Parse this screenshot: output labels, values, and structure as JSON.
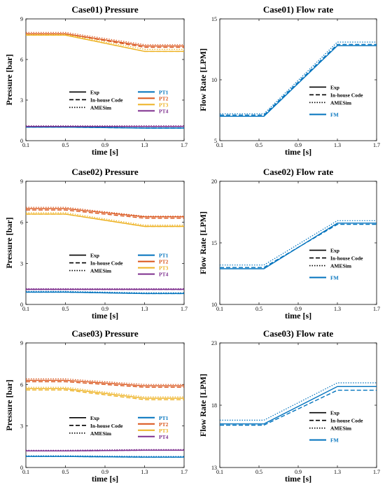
{
  "colors": {
    "PT1": "#0072BD",
    "PT2": "#D95319",
    "PT3": "#EDB120",
    "PT4": "#7E2F8E",
    "FM": "#0072BD"
  },
  "legend_styles": [
    "Exp",
    "In-house Code",
    "AMESim"
  ],
  "chart_data": [
    {
      "type": "line",
      "title": "Case01) Pressure",
      "xlabel": "time [s]",
      "ylabel": "Pressure [bar]",
      "xlim": [
        0.1,
        1.7
      ],
      "ylim": [
        0,
        9
      ],
      "xticks": [
        "0.1",
        "0.5",
        "0.9",
        "1.3",
        "1.7"
      ],
      "yticks": [
        "0",
        "3",
        "6",
        "9"
      ],
      "legend_styles": [
        "Exp",
        "In-house Code",
        "AMESim"
      ],
      "legend_series": [
        "PT1",
        "PT2",
        "PT3",
        "PT4"
      ],
      "x": [
        0.1,
        0.5,
        1.3,
        1.7
      ],
      "series": [
        {
          "name": "PT1",
          "exp": [
            1.0,
            1.0,
            0.93,
            0.93
          ],
          "code": [
            1.0,
            1.0,
            0.93,
            0.93
          ],
          "amesim": [
            1.02,
            1.02,
            0.95,
            0.95
          ]
        },
        {
          "name": "PT2",
          "exp": [
            7.9,
            7.9,
            7.0,
            7.0
          ],
          "code": [
            7.9,
            7.9,
            6.9,
            6.9
          ],
          "amesim": [
            8.0,
            8.0,
            7.1,
            7.1
          ]
        },
        {
          "name": "PT3",
          "exp": [
            7.8,
            7.8,
            6.6,
            6.6
          ],
          "code": [
            7.8,
            7.8,
            6.6,
            6.6
          ],
          "amesim": [
            7.85,
            7.85,
            6.75,
            6.75
          ]
        },
        {
          "name": "PT4",
          "exp": [
            1.05,
            1.05,
            1.05,
            1.05
          ],
          "code": [
            1.05,
            1.05,
            1.05,
            1.05
          ],
          "amesim": [
            1.1,
            1.1,
            1.1,
            1.1
          ]
        }
      ]
    },
    {
      "type": "line",
      "title": "Case01) Flow rate",
      "xlabel": "time [s]",
      "ylabel": "Flow Rate [LPM]",
      "xlim": [
        0.1,
        1.7
      ],
      "ylim": [
        5,
        15
      ],
      "xticks": [
        "0.1",
        "0.5",
        "0.9",
        "1.3",
        "1.7"
      ],
      "yticks": [
        "5",
        "10",
        "15"
      ],
      "legend_styles": [
        "Exp",
        "In-house Code",
        "AMESim"
      ],
      "legend_series": [
        "FM"
      ],
      "x": [
        0.1,
        0.55,
        1.3,
        1.7
      ],
      "series": [
        {
          "name": "FM",
          "exp": [
            7.0,
            7.0,
            12.8,
            12.8
          ],
          "code": [
            7.1,
            7.1,
            12.9,
            12.9
          ],
          "amesim": [
            7.2,
            7.2,
            13.1,
            13.1
          ]
        }
      ]
    },
    {
      "type": "line",
      "title": "Case02) Pressure",
      "xlabel": "time [s]",
      "ylabel": "Pressure [bar]",
      "xlim": [
        0.1,
        1.7
      ],
      "ylim": [
        0,
        9
      ],
      "xticks": [
        "0.1",
        "0.5",
        "0.9",
        "1.3",
        "1.7"
      ],
      "yticks": [
        "0",
        "3",
        "6",
        "9"
      ],
      "legend_styles": [
        "Exp",
        "In-house Code",
        "AMESim"
      ],
      "legend_series": [
        "PT1",
        "PT2",
        "PT3",
        "PT4"
      ],
      "x": [
        0.1,
        0.5,
        1.3,
        1.7
      ],
      "series": [
        {
          "name": "PT1",
          "exp": [
            0.9,
            0.9,
            0.8,
            0.8
          ],
          "code": [
            0.9,
            0.9,
            0.8,
            0.8
          ],
          "amesim": [
            0.95,
            0.95,
            0.85,
            0.85
          ]
        },
        {
          "name": "PT2",
          "exp": [
            7.0,
            7.0,
            6.4,
            6.4
          ],
          "code": [
            6.9,
            6.9,
            6.3,
            6.3
          ],
          "amesim": [
            7.1,
            7.1,
            6.45,
            6.45
          ]
        },
        {
          "name": "PT3",
          "exp": [
            6.6,
            6.6,
            5.7,
            5.7
          ],
          "code": [
            6.6,
            6.6,
            5.7,
            5.7
          ],
          "amesim": [
            6.7,
            6.7,
            5.8,
            5.8
          ]
        },
        {
          "name": "PT4",
          "exp": [
            1.1,
            1.1,
            1.1,
            1.1
          ],
          "code": [
            1.1,
            1.1,
            1.1,
            1.1
          ],
          "amesim": [
            1.15,
            1.15,
            1.15,
            1.15
          ]
        }
      ]
    },
    {
      "type": "line",
      "title": "Case02) Flow rate",
      "xlabel": "time [s]",
      "ylabel": "Flow Rate [LPM]",
      "xlim": [
        0.1,
        1.7
      ],
      "ylim": [
        10,
        20
      ],
      "xticks": [
        "0.1",
        "0.5",
        "0.9",
        "1.3",
        "1.7"
      ],
      "yticks": [
        "10",
        "15",
        "20"
      ],
      "legend_styles": [
        "Exp",
        "In-house Code",
        "AMESim"
      ],
      "legend_series": [
        "FM"
      ],
      "x": [
        0.1,
        0.55,
        1.3,
        1.7
      ],
      "series": [
        {
          "name": "FM",
          "exp": [
            12.9,
            12.9,
            16.6,
            16.6
          ],
          "code": [
            13.0,
            13.0,
            16.5,
            16.5
          ],
          "amesim": [
            13.2,
            13.2,
            16.8,
            16.8
          ]
        }
      ]
    },
    {
      "type": "line",
      "title": "Case03) Pressure",
      "xlabel": "time [s]",
      "ylabel": "Pressure [bar]",
      "xlim": [
        0.1,
        1.7
      ],
      "ylim": [
        0,
        9
      ],
      "xticks": [
        "0.1",
        "0.5",
        "0.9",
        "1.3",
        "1.7"
      ],
      "yticks": [
        "0",
        "3",
        "6",
        "9"
      ],
      "legend_styles": [
        "Exp",
        "In-house Code",
        "AMESim"
      ],
      "legend_series": [
        "PT1",
        "PT2",
        "PT3",
        "PT4"
      ],
      "x": [
        0.1,
        0.5,
        1.3,
        1.7
      ],
      "series": [
        {
          "name": "PT1",
          "exp": [
            0.8,
            0.8,
            0.75,
            0.75
          ],
          "code": [
            0.8,
            0.8,
            0.75,
            0.75
          ],
          "amesim": [
            0.85,
            0.85,
            0.8,
            0.8
          ]
        },
        {
          "name": "PT2",
          "exp": [
            6.3,
            6.3,
            5.9,
            5.9
          ],
          "code": [
            6.2,
            6.2,
            5.8,
            5.8
          ],
          "amesim": [
            6.4,
            6.4,
            6.0,
            6.0
          ]
        },
        {
          "name": "PT3",
          "exp": [
            5.7,
            5.7,
            5.0,
            5.0
          ],
          "code": [
            5.6,
            5.6,
            4.9,
            4.9
          ],
          "amesim": [
            5.8,
            5.8,
            5.1,
            5.1
          ]
        },
        {
          "name": "PT4",
          "exp": [
            1.2,
            1.2,
            1.25,
            1.25
          ],
          "code": [
            1.2,
            1.2,
            1.25,
            1.25
          ],
          "amesim": [
            1.25,
            1.25,
            1.3,
            1.3
          ]
        }
      ]
    },
    {
      "type": "line",
      "title": "Case03) Flow rate",
      "xlabel": "time [s]",
      "ylabel": "Flow Rate [LPM]",
      "xlim": [
        0.1,
        1.7
      ],
      "ylim": [
        13,
        23
      ],
      "xticks": [
        "0.1",
        "0.5",
        "0.9",
        "1.3",
        "1.7"
      ],
      "yticks": [
        "13",
        "18",
        "23"
      ],
      "legend_styles": [
        "Exp",
        "In-house Code",
        "AMESim"
      ],
      "legend_series": [
        "FM"
      ],
      "x": [
        0.1,
        0.55,
        1.3,
        1.7
      ],
      "series": [
        {
          "name": "FM",
          "exp": [
            16.5,
            16.5,
            19.5,
            19.5
          ],
          "code": [
            16.4,
            16.4,
            19.2,
            19.2
          ],
          "amesim": [
            16.8,
            16.8,
            19.8,
            19.8
          ]
        }
      ]
    }
  ]
}
